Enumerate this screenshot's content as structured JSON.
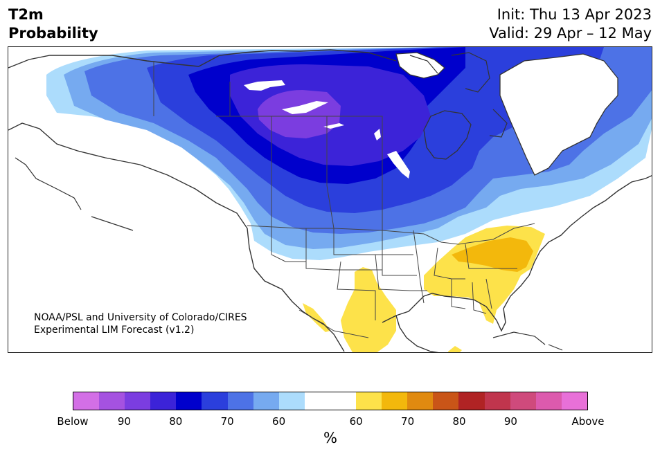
{
  "header": {
    "title_line1": "T2m",
    "title_line2": "Probability",
    "init": "Init: Thu 13 Apr 2023",
    "valid": "Valid: 29 Apr – 12 May"
  },
  "credit": {
    "line1": "NOAA/PSL and University of Colorado/CIRES",
    "line2": "Experimental LIM Forecast (v1.2)"
  },
  "legend": {
    "unit": "%",
    "colors": [
      "#d36fe6",
      "#a552e0",
      "#7b3de0",
      "#3c23d8",
      "#0000cc",
      "#2b3fdc",
      "#4d72e6",
      "#76aaf0",
      "#acdcfc",
      "#ffffff",
      "#ffffff",
      "#fde24a",
      "#f3b80c",
      "#e08a10",
      "#c95518",
      "#b02324",
      "#c0354d",
      "#cf4a7c",
      "#dc5aad",
      "#e870d8"
    ],
    "ticks": [
      "Below",
      "90",
      "80",
      "70",
      "60",
      "60",
      "70",
      "80",
      "90",
      "Above"
    ]
  },
  "map_colors": {
    "below_60": "#acdcfc",
    "below_65": "#76aaf0",
    "below_70": "#4d72e6",
    "below_75": "#2b3fdc",
    "below_80": "#0000cc",
    "below_85": "#3c23d8",
    "below_90": "#7b3de0",
    "above_60": "#fde24a",
    "above_65": "#f3b80c",
    "coast": "#333333"
  }
}
